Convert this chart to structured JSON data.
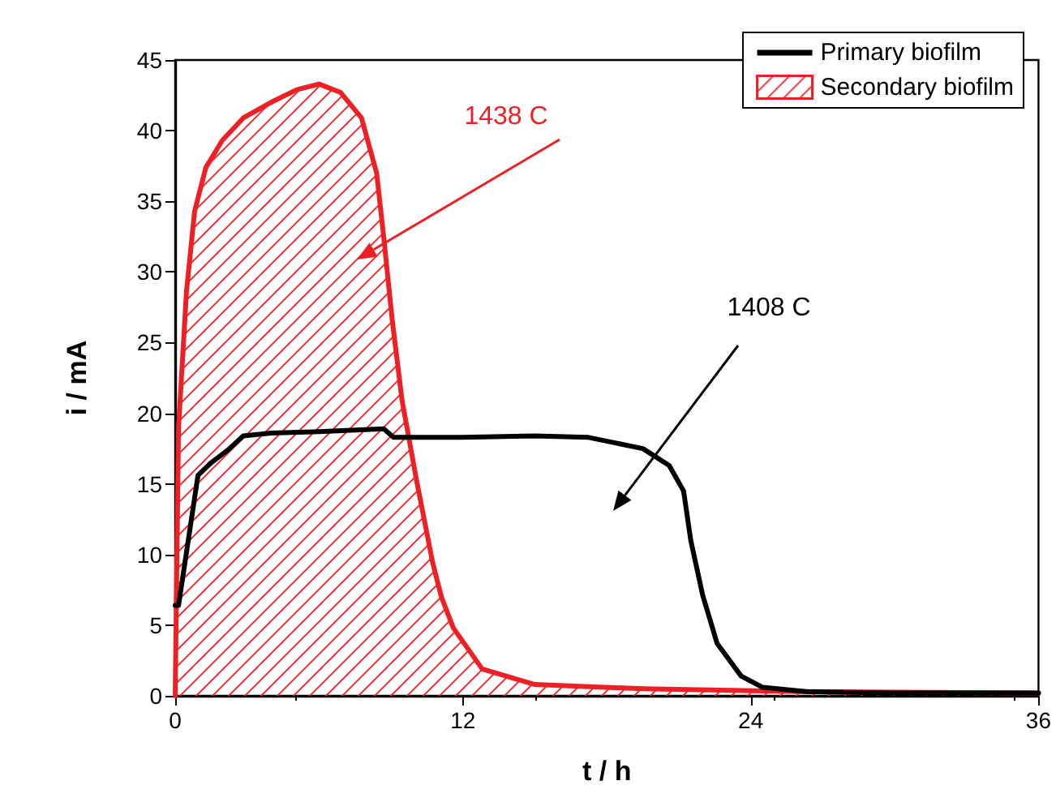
{
  "chart_data": {
    "type": "line",
    "xlabel": "t / h",
    "ylabel": "i / mA",
    "xlim": [
      0,
      36
    ],
    "xticks": [
      0,
      12,
      24,
      36
    ],
    "ylim": [
      0,
      45
    ],
    "yticks": [
      0,
      5,
      10,
      15,
      20,
      25,
      30,
      35,
      40,
      45
    ],
    "grid": false,
    "legend": "top right",
    "marker": "none",
    "line_style": "solid",
    "series": [
      {
        "name": "Primary biofilm",
        "color": "#000000",
        "x": [
          0,
          0.14,
          0.95,
          1.5,
          2.2,
          2.84,
          4,
          6,
          8.7,
          9.1,
          12,
          15,
          17.2,
          19.5,
          20.6,
          21.2,
          21.5,
          22.0,
          22.6,
          23.6,
          24.5,
          26.3,
          30,
          36
        ],
        "values": [
          6.4,
          6.4,
          15.6,
          16.5,
          17.4,
          18.4,
          18.6,
          18.7,
          18.9,
          18.3,
          18.3,
          18.4,
          18.3,
          17.5,
          16.3,
          14.5,
          11.0,
          7.1,
          3.7,
          1.4,
          0.6,
          0.3,
          0.2,
          0.2
        ]
      },
      {
        "name": "Secondary biofilm",
        "type": "area",
        "color": "#ee2025",
        "x": [
          0,
          0.14,
          0.47,
          0.81,
          1.28,
          1.96,
          2.84,
          3.99,
          5.07,
          6.0,
          6.9,
          7.77,
          8.4,
          8.7,
          9.05,
          9.46,
          10.07,
          10.74,
          11.1,
          11.6,
          12.8,
          15,
          19.5,
          26,
          36
        ],
        "values": [
          0,
          19,
          28.6,
          34.3,
          37.4,
          39.3,
          40.9,
          42.0,
          42.9,
          43.3,
          42.7,
          40.9,
          37.0,
          32.4,
          26.6,
          20.9,
          15.2,
          9.4,
          7.0,
          4.8,
          1.9,
          0.8,
          0.5,
          0.3,
          0.2
        ]
      }
    ],
    "annotations": [
      "1438 C",
      "1408 C"
    ]
  }
}
